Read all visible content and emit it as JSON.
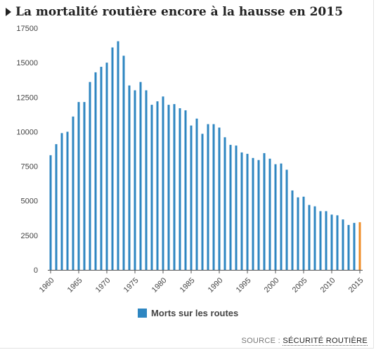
{
  "title": "La mortalité routière encore à la hausse en 2015",
  "source_label": "SOURCE :",
  "source_name": "SÉCURITÉ ROUTIÈRE",
  "colors": {
    "bar": "#2e86c1",
    "highlight": "#ef8c26",
    "axis": "#555555"
  },
  "icons": {
    "title_marker": "triangle-right-icon"
  },
  "chart_data": {
    "type": "bar",
    "xlim": [
      1960,
      2015
    ],
    "ylim": [
      0,
      17500
    ],
    "y_ticks": [
      0,
      2500,
      5000,
      7500,
      10000,
      12500,
      15000,
      17500
    ],
    "x_ticks": [
      1960,
      1965,
      1970,
      1975,
      1980,
      1985,
      1990,
      1995,
      2000,
      2005,
      2010,
      2015
    ],
    "grid": false,
    "legend_position": "bottom",
    "series": [
      {
        "name": "Morts sur les routes",
        "x": [
          1960,
          1961,
          1962,
          1963,
          1964,
          1965,
          1966,
          1967,
          1968,
          1969,
          1970,
          1971,
          1972,
          1973,
          1974,
          1975,
          1976,
          1977,
          1978,
          1979,
          1980,
          1981,
          1982,
          1983,
          1984,
          1985,
          1986,
          1987,
          1988,
          1989,
          1990,
          1991,
          1992,
          1993,
          1994,
          1995,
          1996,
          1997,
          1998,
          1999,
          2000,
          2001,
          2002,
          2003,
          2004,
          2005,
          2006,
          2007,
          2008,
          2009,
          2010,
          2011,
          2012,
          2013,
          2014,
          2015
        ],
        "values": [
          8300,
          9100,
          9900,
          10000,
          11100,
          12150,
          12150,
          13600,
          14300,
          14700,
          15000,
          16100,
          16550,
          15500,
          13350,
          13000,
          13600,
          13000,
          11950,
          12200,
          12550,
          11950,
          12000,
          11700,
          11550,
          10450,
          10950,
          9850,
          10550,
          10550,
          10300,
          9600,
          9050,
          9000,
          8500,
          8400,
          8100,
          7950,
          8450,
          8050,
          7650,
          7700,
          7250,
          5750,
          5250,
          5300,
          4700,
          4600,
          4250,
          4250,
          4000,
          3950,
          3650,
          3250,
          3400,
          3450
        ],
        "highlight_last": true
      }
    ]
  }
}
